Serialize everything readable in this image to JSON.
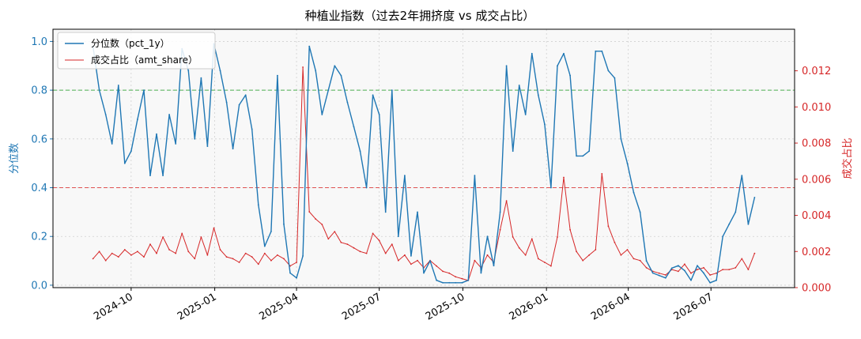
{
  "chart_data": {
    "type": "line",
    "title": "种植业指数（过去2年拥挤度 vs 成交占比）",
    "ylabel_left": "分位数",
    "ylabel_right": "成交占比",
    "x_ticks": [
      "2024-10",
      "2025-01",
      "2025-04",
      "2025-07",
      "2025-10",
      "2026-01",
      "2026-04",
      "2026-07"
    ],
    "ylim_left": [
      -0.01,
      1.05
    ],
    "yticks_left": [
      "0.0",
      "0.2",
      "0.4",
      "0.6",
      "0.8",
      "1.0"
    ],
    "ylim_right": [
      0.0,
      0.0143
    ],
    "yticks_right": [
      "0.000",
      "0.002",
      "0.004",
      "0.006",
      "0.008",
      "0.010",
      "0.012"
    ],
    "reference_lines": [
      {
        "axis": "left",
        "value": 0.8,
        "color": "#4caf50",
        "style": "dashed"
      },
      {
        "axis": "left",
        "value": 0.4,
        "color": "#e05252",
        "style": "dashed"
      }
    ],
    "grid": true,
    "legend_position": "top-left",
    "colors": {
      "pct": "#1f77b4",
      "amt": "#d62728"
    },
    "series": [
      {
        "name": "分位数（pct_1y）",
        "axis": "left",
        "x": [
          "2024-08-20",
          "2024-08-27",
          "2024-09-03",
          "2024-09-10",
          "2024-09-17",
          "2024-09-24",
          "2024-10-01",
          "2024-10-08",
          "2024-10-15",
          "2024-10-22",
          "2024-10-29",
          "2024-11-05",
          "2024-11-12",
          "2024-11-19",
          "2024-11-26",
          "2024-12-03",
          "2024-12-10",
          "2024-12-17",
          "2024-12-24",
          "2024-12-31",
          "2025-01-07",
          "2025-01-14",
          "2025-01-21",
          "2025-01-28",
          "2025-02-04",
          "2025-02-11",
          "2025-02-18",
          "2025-02-25",
          "2025-03-04",
          "2025-03-11",
          "2025-03-18",
          "2025-03-25",
          "2025-04-01",
          "2025-04-08",
          "2025-04-15",
          "2025-04-22",
          "2025-04-29",
          "2025-05-06",
          "2025-05-13",
          "2025-05-20",
          "2025-05-27",
          "2025-06-03",
          "2025-06-10",
          "2025-06-17",
          "2025-06-24",
          "2025-07-01",
          "2025-07-08",
          "2025-07-15",
          "2025-07-22",
          "2025-07-29",
          "2025-08-05",
          "2025-08-12",
          "2025-08-19",
          "2025-08-26",
          "2025-09-02",
          "2025-09-09",
          "2025-09-16",
          "2025-09-23",
          "2025-09-30",
          "2025-10-07",
          "2025-10-14",
          "2025-10-21",
          "2025-10-28",
          "2025-11-04",
          "2025-11-11",
          "2025-11-18",
          "2025-11-25",
          "2025-12-02",
          "2025-12-09",
          "2025-12-16",
          "2025-12-23",
          "2025-12-30",
          "2026-01-06",
          "2026-01-13",
          "2026-01-20",
          "2026-01-27",
          "2026-02-03",
          "2026-02-10",
          "2026-02-17",
          "2026-02-24",
          "2026-03-03",
          "2026-03-10",
          "2026-03-17",
          "2026-03-24",
          "2026-03-31",
          "2026-04-07",
          "2026-04-14",
          "2026-04-21",
          "2026-04-28",
          "2026-05-05",
          "2026-05-12",
          "2026-05-19",
          "2026-05-26",
          "2026-06-02",
          "2026-06-09",
          "2026-06-16",
          "2026-06-23",
          "2026-06-30",
          "2026-07-07",
          "2026-07-14",
          "2026-07-21",
          "2026-07-28",
          "2026-08-04",
          "2026-08-11",
          "2026-08-18"
        ],
        "values": [
          0.98,
          0.8,
          0.7,
          0.58,
          0.82,
          0.5,
          0.55,
          0.68,
          0.8,
          0.45,
          0.62,
          0.45,
          0.7,
          0.58,
          0.97,
          0.88,
          0.6,
          0.85,
          0.57,
          0.99,
          0.88,
          0.75,
          0.56,
          0.74,
          0.78,
          0.64,
          0.33,
          0.16,
          0.22,
          0.86,
          0.25,
          0.05,
          0.03,
          0.12,
          0.98,
          0.88,
          0.7,
          0.8,
          0.9,
          0.86,
          0.75,
          0.65,
          0.55,
          0.4,
          0.78,
          0.7,
          0.3,
          0.8,
          0.2,
          0.45,
          0.12,
          0.3,
          0.05,
          0.1,
          0.02,
          0.01,
          0.01,
          0.01,
          0.01,
          0.02,
          0.45,
          0.05,
          0.2,
          0.08,
          0.3,
          0.9,
          0.55,
          0.82,
          0.7,
          0.95,
          0.78,
          0.66,
          0.4,
          0.9,
          0.95,
          0.86,
          0.53,
          0.53,
          0.55,
          0.96,
          0.96,
          0.88,
          0.85,
          0.6,
          0.5,
          0.38,
          0.3,
          0.1,
          0.05,
          0.04,
          0.03,
          0.07,
          0.08,
          0.06,
          0.02,
          0.08,
          0.05,
          0.01,
          0.02,
          0.2,
          0.25,
          0.3,
          0.45,
          0.25,
          0.36
        ]
      },
      {
        "name": "成交占比（amt_share）",
        "axis": "right",
        "x": [
          "2024-08-20",
          "2024-08-27",
          "2024-09-03",
          "2024-09-10",
          "2024-09-17",
          "2024-09-24",
          "2024-10-01",
          "2024-10-08",
          "2024-10-15",
          "2024-10-22",
          "2024-10-29",
          "2024-11-05",
          "2024-11-12",
          "2024-11-19",
          "2024-11-26",
          "2024-12-03",
          "2024-12-10",
          "2024-12-17",
          "2024-12-24",
          "2024-12-31",
          "2025-01-07",
          "2025-01-14",
          "2025-01-21",
          "2025-01-28",
          "2025-02-04",
          "2025-02-11",
          "2025-02-18",
          "2025-02-25",
          "2025-03-04",
          "2025-03-11",
          "2025-03-18",
          "2025-03-25",
          "2025-04-01",
          "2025-04-08",
          "2025-04-15",
          "2025-04-22",
          "2025-04-29",
          "2025-05-06",
          "2025-05-13",
          "2025-05-20",
          "2025-05-27",
          "2025-06-03",
          "2025-06-10",
          "2025-06-17",
          "2025-06-24",
          "2025-07-01",
          "2025-07-08",
          "2025-07-15",
          "2025-07-22",
          "2025-07-29",
          "2025-08-05",
          "2025-08-12",
          "2025-08-19",
          "2025-08-26",
          "2025-09-02",
          "2025-09-09",
          "2025-09-16",
          "2025-09-23",
          "2025-09-30",
          "2025-10-07",
          "2025-10-14",
          "2025-10-21",
          "2025-10-28",
          "2025-11-04",
          "2025-11-11",
          "2025-11-18",
          "2025-11-25",
          "2025-12-02",
          "2025-12-09",
          "2025-12-16",
          "2025-12-23",
          "2025-12-30",
          "2026-01-06",
          "2026-01-13",
          "2026-01-20",
          "2026-01-27",
          "2026-02-03",
          "2026-02-10",
          "2026-02-17",
          "2026-02-24",
          "2026-03-03",
          "2026-03-10",
          "2026-03-17",
          "2026-03-24",
          "2026-03-31",
          "2026-04-07",
          "2026-04-14",
          "2026-04-21",
          "2026-04-28",
          "2026-05-05",
          "2026-05-12",
          "2026-05-19",
          "2026-05-26",
          "2026-06-02",
          "2026-06-09",
          "2026-06-16",
          "2026-06-23",
          "2026-06-30",
          "2026-07-07",
          "2026-07-14",
          "2026-07-21",
          "2026-07-28",
          "2026-08-04",
          "2026-08-11",
          "2026-08-18"
        ],
        "values": [
          0.0016,
          0.002,
          0.0015,
          0.0019,
          0.0017,
          0.0021,
          0.0018,
          0.002,
          0.0017,
          0.0024,
          0.0019,
          0.0028,
          0.0021,
          0.0019,
          0.003,
          0.002,
          0.0016,
          0.0028,
          0.0018,
          0.0033,
          0.0021,
          0.0017,
          0.0016,
          0.0014,
          0.0019,
          0.0017,
          0.0013,
          0.0019,
          0.0015,
          0.0018,
          0.0016,
          0.0012,
          0.0014,
          0.0122,
          0.0042,
          0.0038,
          0.0035,
          0.0027,
          0.0031,
          0.0025,
          0.0024,
          0.0022,
          0.002,
          0.0019,
          0.003,
          0.0026,
          0.0019,
          0.0024,
          0.0015,
          0.0018,
          0.0013,
          0.0015,
          0.0011,
          0.0015,
          0.0012,
          0.0009,
          0.0008,
          0.0006,
          0.0005,
          0.0004,
          0.0015,
          0.0011,
          0.0018,
          0.0014,
          0.0032,
          0.0048,
          0.0028,
          0.0022,
          0.0018,
          0.0027,
          0.0016,
          0.0014,
          0.0012,
          0.0028,
          0.0061,
          0.0032,
          0.002,
          0.0015,
          0.0018,
          0.0021,
          0.0063,
          0.0034,
          0.0025,
          0.0018,
          0.0021,
          0.0016,
          0.0015,
          0.0011,
          0.0009,
          0.0008,
          0.0007,
          0.001,
          0.0009,
          0.0013,
          0.0008,
          0.001,
          0.0011,
          0.0007,
          0.0008,
          0.001,
          0.001,
          0.0011,
          0.0016,
          0.001,
          0.0019
        ]
      }
    ]
  }
}
